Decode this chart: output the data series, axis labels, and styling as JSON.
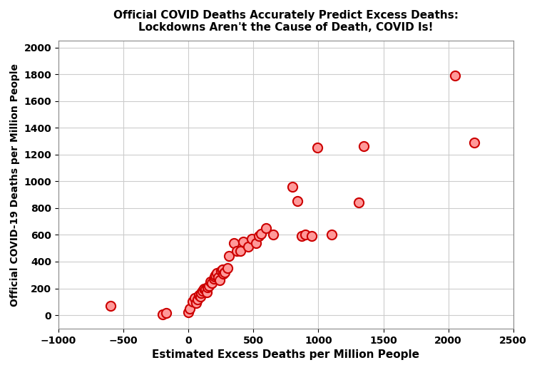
{
  "title": "Official COVID Deaths Accurately Predict Excess Deaths:\nLockdowns Aren't the Cause of Death, COVID Is!",
  "xlabel": "Estimated Excess Deaths per Million People",
  "ylabel": "Official COVID-19 Deaths per Million People",
  "xlim": [
    -1000,
    2500
  ],
  "ylim": [
    -100,
    2050
  ],
  "xticks": [
    -1000,
    -500,
    0,
    500,
    1000,
    1500,
    2000,
    2500
  ],
  "yticks": [
    0,
    200,
    400,
    600,
    800,
    1000,
    1200,
    1400,
    1600,
    1800,
    2000
  ],
  "background_color": "#ffffff",
  "grid_color": "#cccccc",
  "marker_facecolor": "#ff9999",
  "marker_edgecolor": "#cc0000",
  "marker_size": 90,
  "data_points": [
    [
      -600,
      70
    ],
    [
      -200,
      5
    ],
    [
      -170,
      15
    ],
    [
      0,
      20
    ],
    [
      10,
      50
    ],
    [
      30,
      100
    ],
    [
      50,
      130
    ],
    [
      60,
      90
    ],
    [
      70,
      120
    ],
    [
      80,
      150
    ],
    [
      90,
      140
    ],
    [
      100,
      165
    ],
    [
      110,
      180
    ],
    [
      120,
      200
    ],
    [
      130,
      190
    ],
    [
      140,
      170
    ],
    [
      150,
      210
    ],
    [
      160,
      220
    ],
    [
      170,
      250
    ],
    [
      180,
      240
    ],
    [
      195,
      270
    ],
    [
      200,
      290
    ],
    [
      210,
      300
    ],
    [
      220,
      315
    ],
    [
      230,
      280
    ],
    [
      240,
      260
    ],
    [
      250,
      330
    ],
    [
      260,
      340
    ],
    [
      270,
      310
    ],
    [
      280,
      320
    ],
    [
      300,
      350
    ],
    [
      310,
      440
    ],
    [
      350,
      540
    ],
    [
      370,
      480
    ],
    [
      400,
      480
    ],
    [
      420,
      550
    ],
    [
      460,
      510
    ],
    [
      490,
      570
    ],
    [
      520,
      540
    ],
    [
      540,
      590
    ],
    [
      560,
      610
    ],
    [
      600,
      650
    ],
    [
      650,
      600
    ],
    [
      800,
      960
    ],
    [
      840,
      850
    ],
    [
      870,
      590
    ],
    [
      900,
      600
    ],
    [
      950,
      590
    ],
    [
      990,
      1250
    ],
    [
      1100,
      600
    ],
    [
      1310,
      840
    ],
    [
      1350,
      1260
    ],
    [
      2050,
      1790
    ],
    [
      2200,
      1290
    ]
  ]
}
